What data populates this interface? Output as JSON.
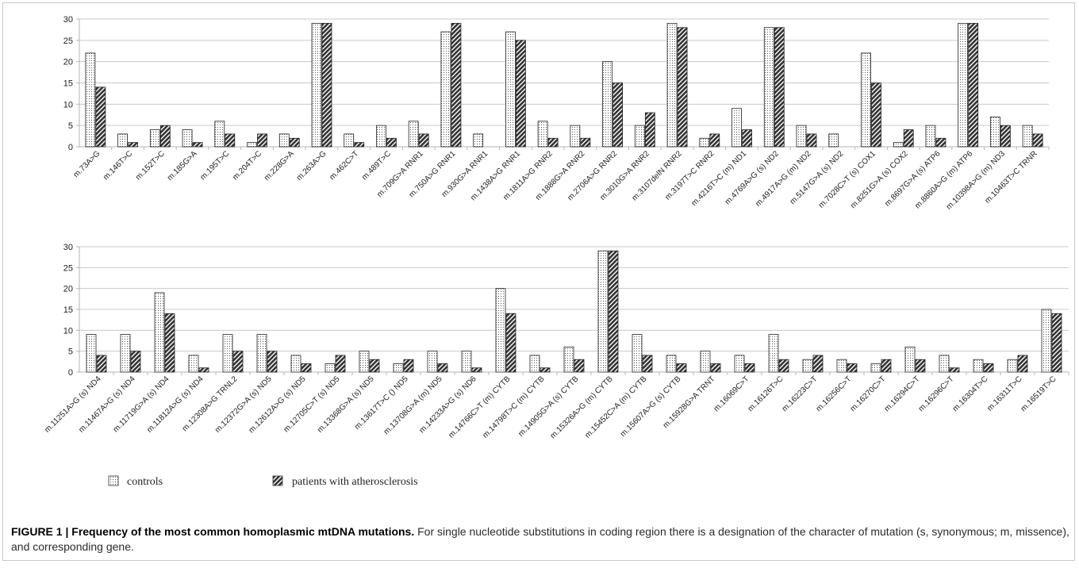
{
  "colors": {
    "controls": "#ffffff",
    "patients": "#333333",
    "axis": "#b5b5b5",
    "grid": "#c9c9c9",
    "text": "#222222"
  },
  "legend": {
    "controls": "controls",
    "patients": "patients with atherosclerosis"
  },
  "caption": {
    "bold": "FIGURE 1 | Frequency of the most common homoplasmic mtDNA mutations.",
    "text": " For single nucleotide substitutions in coding region there is a designation of the character of mutation (s, synonymous; m, missence), and corresponding gene."
  },
  "chart_data": [
    {
      "type": "bar",
      "ylim": [
        0,
        30
      ],
      "yticks": [
        0,
        5,
        10,
        15,
        20,
        25,
        30
      ],
      "grid": true,
      "legend_position": "bottom",
      "categories": [
        "m.73A>G",
        "m.146T>C",
        "m.152T>C",
        "m.185G>A",
        "m.195T>C",
        "m.204T>C",
        "m.228G>A",
        "m.263A>G",
        "m.462C>T",
        "m.489T>C",
        "m.709G>A RNR1",
        "m.750A>G RNR1",
        "m.930G>A RNR1",
        "m.1438A>G RNR1",
        "m.1811A>G RNR2",
        "m.1888G>A RNR2",
        "m.2706A>G RNR2",
        "m.3010G>A RNR2",
        "m.3107delN RNR2",
        "m.3197T>C RNR2",
        "m.4216T>C (m) ND1",
        "m.4769A>G (s) ND2",
        "m.4917A>G (m) ND2",
        "m.5147G>A (s) ND2",
        "m.7028C>T (s) COX1",
        "m.8251G>A (s) COX2",
        "m.8697G>A (s) ATP6",
        "m.8860A>G (m) ATP6",
        "m.10398A>G (m) ND3",
        "m.10463T>C TRNR"
      ],
      "series": [
        {
          "name": "controls",
          "values": [
            22,
            3,
            4,
            4,
            6,
            1,
            3,
            29,
            3,
            5,
            6,
            27,
            3,
            27,
            6,
            5,
            20,
            5,
            29,
            2,
            9,
            28,
            5,
            3,
            22,
            1,
            5,
            29,
            7,
            5
          ]
        },
        {
          "name": "patients with atherosclerosis",
          "values": [
            14,
            1,
            5,
            1,
            3,
            3,
            2,
            29,
            1,
            2,
            3,
            29,
            0,
            25,
            2,
            2,
            15,
            8,
            28,
            3,
            4,
            28,
            3,
            0,
            15,
            4,
            2,
            29,
            5,
            3
          ]
        }
      ]
    },
    {
      "type": "bar",
      "ylim": [
        0,
        30
      ],
      "yticks": [
        0,
        5,
        10,
        15,
        20,
        25,
        30
      ],
      "grid": true,
      "legend_position": "bottom",
      "categories": [
        "m.11251A>G (s) ND4",
        "m.11467A>G (s) ND4",
        "m.11719G>A (s) ND4",
        "m.11812A>G (s) ND4",
        "m.12308A>G TRNL2",
        "m.12372G>A (s) ND5",
        "m.12612A>G (s) ND5",
        "m.12705C>T (s) ND5",
        "m.13368G>A (s) ND5",
        "m.13617T>C () ND5",
        "m.13708G>A (m) ND5",
        "m.14233A>G (s) ND6",
        "m.14766C>T (m) CYTB",
        "m.14798T>C (m) CYTB",
        "m.14905G>A (s) CYTB",
        "m.15326A>G (m) CYTB",
        "m.15452C>A (m) CYTB",
        "m.15607A>G (s) CYTB",
        "m.15928G>A TRNT",
        "m.16069C>T",
        "m.16126T>C",
        "m.16223C>T",
        "m.16256C>T",
        "m.16270C>T",
        "m.16294C>T",
        "m.16296C>T",
        "m.16304T>C",
        "m.16311T>C",
        "m.16519T>C"
      ],
      "series": [
        {
          "name": "controls",
          "values": [
            9,
            9,
            19,
            4,
            9,
            9,
            4,
            2,
            5,
            2,
            5,
            5,
            20,
            4,
            6,
            29,
            9,
            4,
            5,
            4,
            9,
            3,
            3,
            2,
            6,
            4,
            3,
            3,
            15
          ]
        },
        {
          "name": "patients with atherosclerosis",
          "values": [
            4,
            5,
            14,
            1,
            5,
            5,
            2,
            4,
            3,
            3,
            2,
            1,
            14,
            1,
            3,
            29,
            4,
            2,
            2,
            2,
            3,
            4,
            2,
            3,
            3,
            1,
            2,
            4,
            14
          ]
        }
      ]
    }
  ]
}
